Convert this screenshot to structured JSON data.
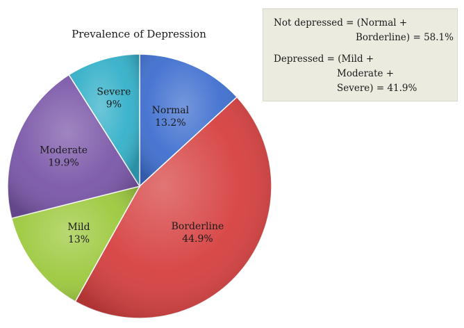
{
  "chart_data": {
    "type": "pie",
    "title": "Prevalence of Depression",
    "slices": [
      {
        "label": "Normal",
        "value": 13.2,
        "value_label": "13.2%",
        "color": "#3f6fcf"
      },
      {
        "label": "Borderline",
        "value": 44.9,
        "value_label": "44.9%",
        "color": "#d64040"
      },
      {
        "label": "Mild",
        "value": 13,
        "value_label": "13%",
        "color": "#9dc93e"
      },
      {
        "label": "Moderate",
        "value": 19.9,
        "value_label": "19.9%",
        "color": "#7a56a8"
      },
      {
        "label": "Severe",
        "value": 9,
        "value_label": "9%",
        "color": "#34b0c9"
      }
    ],
    "start_angle_deg": 0,
    "direction": "clockwise"
  },
  "notes": {
    "not_depressed_line1": "Not depressed = (Normal +",
    "not_depressed_line2": "Borderline) = 58.1%",
    "depressed_line1": "Depressed = (Mild +",
    "depressed_line2": "Moderate +",
    "depressed_line3": "Severe) = 41.9%"
  }
}
